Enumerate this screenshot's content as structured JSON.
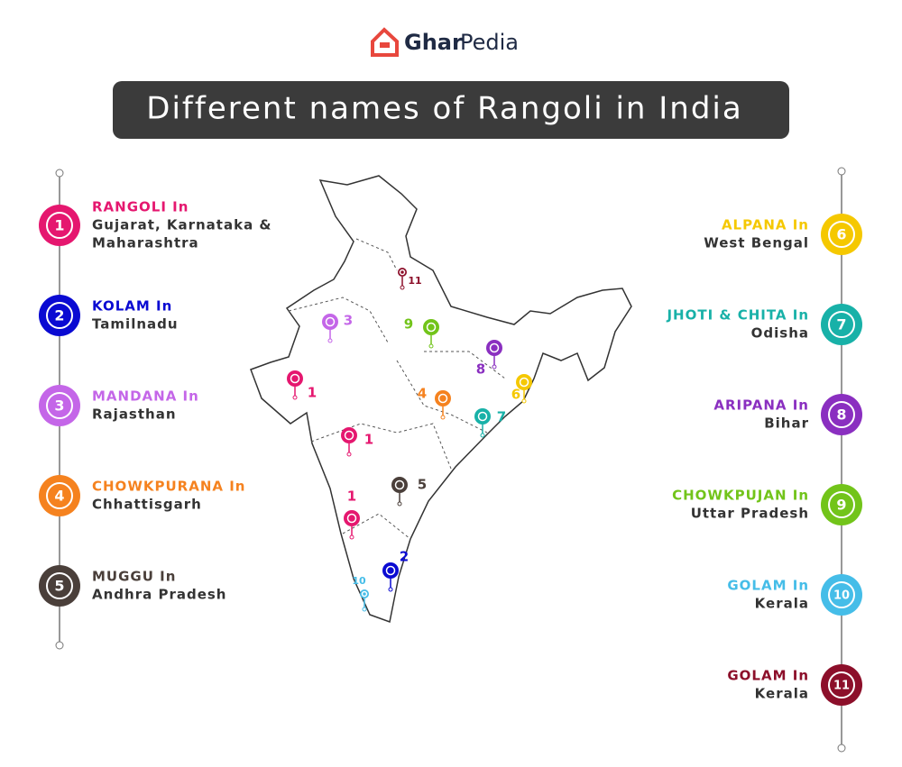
{
  "header": {
    "brand_first": "Ghar",
    "brand_second": "Pedia",
    "title": "Different names of Rangoli in India"
  },
  "left_items": [
    {
      "number": "1",
      "name": "RANGOLI In",
      "region": [
        "Gujarat, Karnataka &",
        "Maharashtra"
      ],
      "color": "#e5176f"
    },
    {
      "number": "2",
      "name": "KOLAM In",
      "region": [
        "Tamilnadu"
      ],
      "color": "#0a0ad2"
    },
    {
      "number": "3",
      "name": "MANDANA In",
      "region": [
        "Rajasthan"
      ],
      "color": "#c466e8"
    },
    {
      "number": "4",
      "name": "CHOWKPURANA In",
      "region": [
        "Chhattisgarh"
      ],
      "color": "#f5821f"
    },
    {
      "number": "5",
      "name": "MUGGU In",
      "region": [
        "Andhra Pradesh"
      ],
      "color": "#4a3f3a"
    }
  ],
  "right_items": [
    {
      "number": "6",
      "name": "ALPANA In",
      "region": [
        "West Bengal"
      ],
      "color": "#f5c800"
    },
    {
      "number": "7",
      "name": "JHOTI & CHITA In",
      "region": [
        "Odisha"
      ],
      "color": "#18b1a8"
    },
    {
      "number": "8",
      "name": "ARIPANA In",
      "region": [
        "Bihar"
      ],
      "color": "#8a2fc0"
    },
    {
      "number": "9",
      "name": "CHOWKPUJAN In",
      "region": [
        "Uttar Pradesh"
      ],
      "color": "#72c41a"
    },
    {
      "number": "10",
      "name": "GOLAM In",
      "region": [
        "Kerala"
      ],
      "color": "#45bde8"
    },
    {
      "number": "11",
      "name": "GOLAM In",
      "region": [
        "Kerala"
      ],
      "color": "#8c0f2a"
    }
  ],
  "map": {
    "pins": [
      {
        "label": "1",
        "color": "#e5176f"
      },
      {
        "label": "1",
        "color": "#e5176f"
      },
      {
        "label": "1",
        "color": "#e5176f"
      },
      {
        "label": "2",
        "color": "#0a0ad2"
      },
      {
        "label": "3",
        "color": "#c466e8"
      },
      {
        "label": "4",
        "color": "#f5821f"
      },
      {
        "label": "5",
        "color": "#4a3f3a"
      },
      {
        "label": "6",
        "color": "#f5c800"
      },
      {
        "label": "7",
        "color": "#18b1a8"
      },
      {
        "label": "8",
        "color": "#8a2fc0"
      },
      {
        "label": "9",
        "color": "#72c41a"
      },
      {
        "label": "10",
        "color": "#45bde8"
      },
      {
        "label": "11",
        "color": "#8c0f2a"
      }
    ]
  }
}
